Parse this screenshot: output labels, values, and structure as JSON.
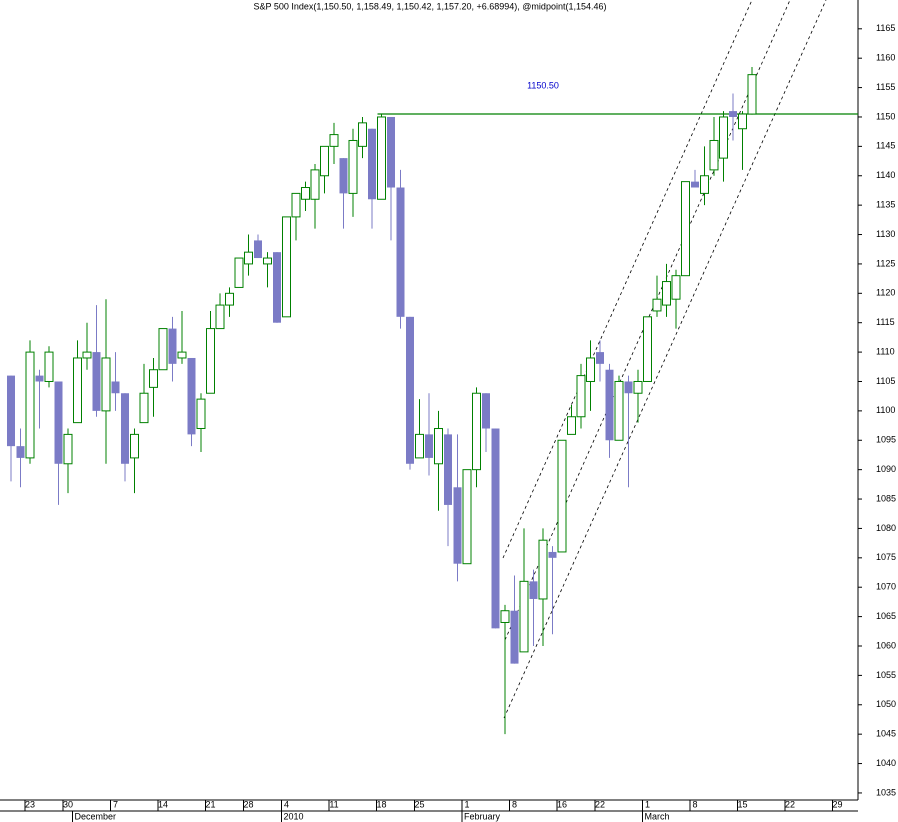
{
  "chart_data": {
    "type": "candlestick",
    "title": "S&P 500 Index(1,150.50, 1,158.49, 1,150.42, 1,157.20, +6.68994), @midpoint(1,154.46)",
    "annotation": {
      "text": "1150.50",
      "value": 1150.5,
      "color": "#0000cc"
    },
    "level_line": {
      "value": 1150.5,
      "start": 39,
      "color": "#008000"
    },
    "up_color": "#008000",
    "down_color": "#7b7bc6",
    "open": [
      1106,
      1094,
      1092,
      1106,
      1105,
      1105,
      1091,
      1098,
      1109,
      1110,
      1100,
      1105,
      1103,
      1092,
      1098,
      1104,
      1107,
      1114,
      1109,
      1109,
      1097,
      1103,
      1114,
      1118,
      1121,
      1125,
      1129,
      1125,
      1127,
      1116,
      1133,
      1136,
      1136,
      1140,
      1145,
      1143,
      1137,
      1145,
      1148,
      1136,
      1150,
      1138,
      1116,
      1092,
      1096,
      1091,
      1096,
      1087,
      1074,
      1090,
      1103,
      1097,
      1064,
      1066,
      1059,
      1071,
      1068,
      1076,
      1076,
      1096,
      1099,
      1105,
      1110,
      1107,
      1095,
      1105,
      1103,
      1105,
      1117,
      1118,
      1119,
      1123,
      1139,
      1137,
      1141,
      1143,
      1151,
      1148,
      1150.5
    ],
    "high": [
      1106,
      1097,
      1112,
      1107,
      1111,
      1105,
      1097,
      1112,
      1115,
      1118,
      1119,
      1110,
      1103,
      1097,
      1108,
      1109,
      1114,
      1116,
      1117,
      1109,
      1103,
      1117,
      1120,
      1121,
      1126,
      1130,
      1130,
      1127,
      1127,
      1133,
      1136,
      1139,
      1142,
      1145,
      1149,
      1143,
      1148,
      1150,
      1148,
      1150.5,
      1150,
      1141,
      1116,
      1102,
      1103,
      1100,
      1097,
      1096,
      1090,
      1104,
      1103,
      1097,
      1067,
      1072,
      1080,
      1073,
      1080,
      1077,
      1095,
      1101,
      1108,
      1112,
      1112,
      1108,
      1106,
      1106,
      1107,
      1116,
      1123,
      1125,
      1124,
      1139,
      1141,
      1145,
      1150,
      1151,
      1154,
      1151,
      1158.5
    ],
    "low": [
      1088,
      1087,
      1091,
      1097,
      1104,
      1084,
      1086,
      1098,
      1107,
      1099,
      1091,
      1100,
      1088,
      1086,
      1098,
      1099,
      1107,
      1105,
      1108,
      1094,
      1093,
      1103,
      1114,
      1116,
      1121,
      1123,
      1126,
      1121,
      1115,
      1116,
      1129,
      1134,
      1131,
      1137,
      1142,
      1131,
      1133,
      1143,
      1131,
      1136,
      1129,
      1114,
      1090,
      1092,
      1089,
      1083,
      1077,
      1071,
      1074,
      1087,
      1093,
      1063,
      1045,
      1057,
      1059,
      1060,
      1060,
      1062,
      1076,
      1096,
      1097,
      1100,
      1105,
      1092,
      1095,
      1087,
      1098,
      1105,
      1116,
      1116,
      1114,
      1123,
      1138,
      1135,
      1140,
      1139,
      1146,
      1141,
      1150.4
    ],
    "close": [
      1094,
      1092,
      1110,
      1105,
      1110,
      1091,
      1096,
      1109,
      1110,
      1100,
      1109,
      1103,
      1091,
      1096,
      1103,
      1107,
      1114,
      1108,
      1110,
      1096,
      1102,
      1114,
      1118,
      1120,
      1126,
      1127,
      1126,
      1126,
      1115,
      1133,
      1137,
      1138,
      1141,
      1145,
      1147,
      1137,
      1146,
      1149,
      1136,
      1150,
      1138,
      1116,
      1091,
      1096,
      1092,
      1097,
      1084,
      1074,
      1090,
      1103,
      1097,
      1063,
      1066,
      1057,
      1071,
      1068,
      1078,
      1075,
      1095,
      1099,
      1106,
      1109,
      1108,
      1095,
      1105,
      1103,
      1105,
      1116,
      1119,
      1122,
      1123,
      1139,
      1138,
      1140,
      1146,
      1150,
      1150,
      1150.5,
      1157.2
    ],
    "xticks": [
      {
        "value": 2,
        "label": "23"
      },
      {
        "value": 6,
        "label": "30"
      },
      {
        "value": 11,
        "label": "7"
      },
      {
        "value": 16,
        "label": "14"
      },
      {
        "value": 21,
        "label": "21"
      },
      {
        "value": 25,
        "label": "28"
      },
      {
        "value": 29,
        "label": "4"
      },
      {
        "value": 34,
        "label": "11"
      },
      {
        "value": 39,
        "label": "18"
      },
      {
        "value": 43,
        "label": "25"
      },
      {
        "value": 48,
        "label": "1"
      },
      {
        "value": 53,
        "label": "8"
      },
      {
        "value": 58,
        "label": "16"
      },
      {
        "value": 62,
        "label": "22"
      },
      {
        "value": 67,
        "label": "1"
      },
      {
        "value": 72,
        "label": "8"
      },
      {
        "value": 77,
        "label": "15"
      },
      {
        "value": 82,
        "label": "22"
      },
      {
        "value": 87,
        "label": "29"
      }
    ],
    "month_labels": [
      {
        "value": 7,
        "label": "December"
      },
      {
        "value": 29,
        "label": "2010"
      },
      {
        "value": 48,
        "label": "February"
      },
      {
        "value": 67,
        "label": "March"
      }
    ],
    "ylim": [
      1033.8,
      1169.9
    ],
    "yticks": [
      1035,
      1040,
      1045,
      1050,
      1055,
      1060,
      1065,
      1070,
      1075,
      1080,
      1085,
      1090,
      1095,
      1100,
      1105,
      1110,
      1115,
      1120,
      1125,
      1130,
      1135,
      1140,
      1145,
      1150,
      1155,
      1160,
      1165
    ]
  }
}
